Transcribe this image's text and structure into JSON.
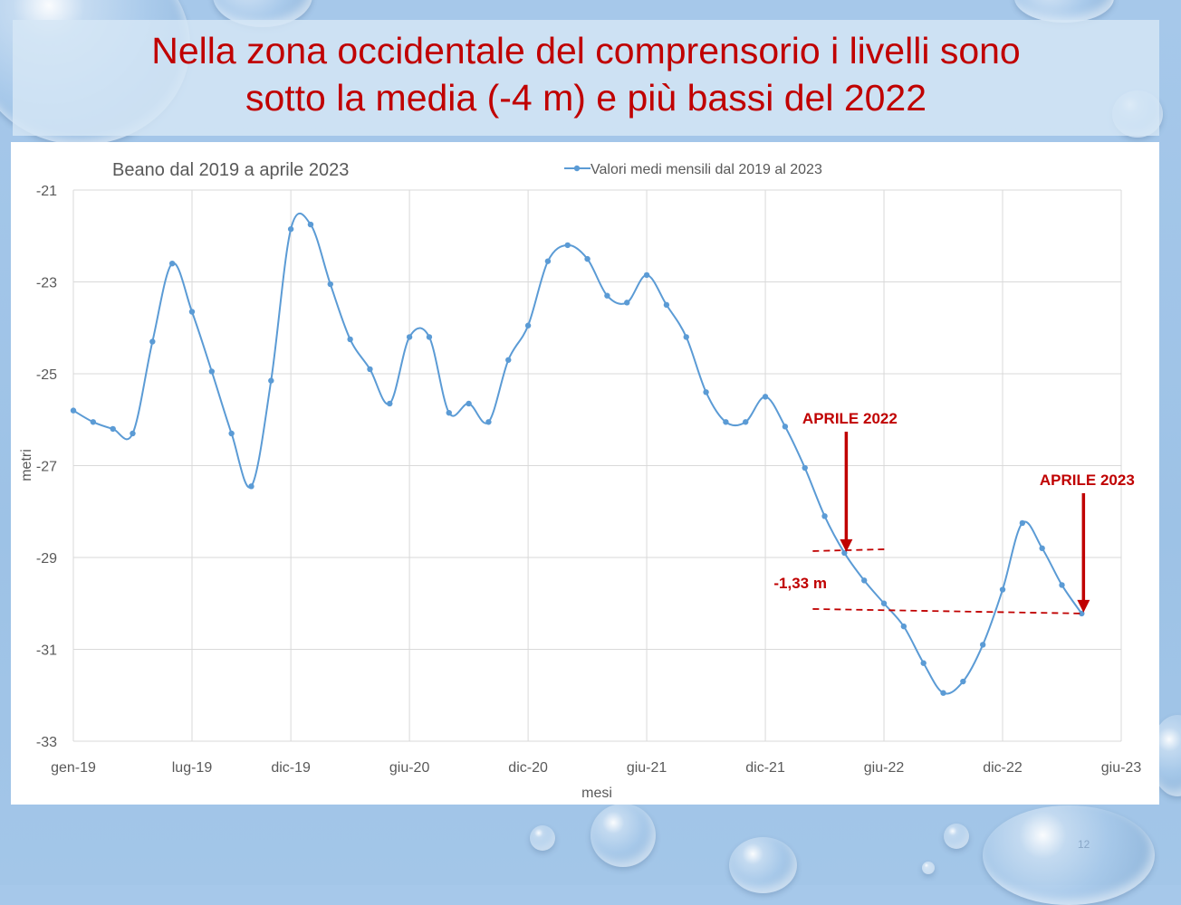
{
  "slide": {
    "title_line1": "Nella zona occidentale del comprensorio i livelli sono",
    "title_line2": "sotto la media (-4 m) e più bassi del 2022",
    "page_number": "12"
  },
  "chart_data": {
    "type": "line",
    "title": "Beano dal 2019 a aprile 2023",
    "xlabel": "mesi",
    "ylabel": "metri",
    "ylim": [
      -33,
      -21
    ],
    "yticks": [
      -21,
      -23,
      -25,
      -27,
      -29,
      -31,
      -33
    ],
    "xtick_labels": [
      "gen-19",
      "lug-19",
      "dic-19",
      "giu-20",
      "dic-20",
      "giu-21",
      "dic-21",
      "giu-22",
      "dic-22",
      "giu-23"
    ],
    "legend": {
      "position": "top",
      "label": "Valori medi mensili dal 2019 al 2023"
    },
    "grid": true,
    "series": [
      {
        "name": "Valori medi mensili dal 2019 al 2023",
        "color": "#5b9bd5",
        "x": [
          "2019-01",
          "2019-02",
          "2019-03",
          "2019-04",
          "2019-05",
          "2019-06",
          "2019-07",
          "2019-08",
          "2019-09",
          "2019-10",
          "2019-11",
          "2019-12",
          "2020-01",
          "2020-02",
          "2020-03",
          "2020-04",
          "2020-05",
          "2020-06",
          "2020-07",
          "2020-08",
          "2020-09",
          "2020-10",
          "2020-11",
          "2020-12",
          "2021-01",
          "2021-02",
          "2021-03",
          "2021-04",
          "2021-05",
          "2021-06",
          "2021-07",
          "2021-08",
          "2021-09",
          "2021-10",
          "2021-11",
          "2021-12",
          "2022-01",
          "2022-02",
          "2022-03",
          "2022-04",
          "2022-05",
          "2022-06",
          "2022-07",
          "2022-08",
          "2022-09",
          "2022-10",
          "2022-11",
          "2022-12",
          "2023-01",
          "2023-02",
          "2023-03",
          "2023-04"
        ],
        "values": [
          -25.8,
          -26.05,
          -26.2,
          -26.3,
          -24.3,
          -22.6,
          -23.65,
          -24.95,
          -26.3,
          -27.45,
          -25.15,
          -21.85,
          -21.75,
          -23.05,
          -24.25,
          -24.9,
          -25.65,
          -24.2,
          -24.2,
          -25.85,
          -25.65,
          -26.05,
          -24.7,
          -23.95,
          -22.55,
          -22.2,
          -22.5,
          -23.3,
          -23.45,
          -22.85,
          -23.5,
          -24.2,
          -25.4,
          -26.05,
          -26.05,
          -25.5,
          -26.15,
          -27.05,
          -28.1,
          -28.9,
          -29.5,
          -30.0,
          -30.5,
          -31.3,
          -31.95,
          -31.7,
          -30.9,
          -29.7,
          -28.25,
          -28.8,
          -29.6,
          -30.22
        ]
      }
    ],
    "annotations": [
      {
        "text": "APRILE 2022",
        "x": "2022-04",
        "y": -28.9,
        "color": "#c00000"
      },
      {
        "text": "APRILE 2023",
        "x": "2023-04",
        "y": -30.22,
        "color": "#c00000"
      },
      {
        "text": "-1,33 m",
        "color": "#c00000"
      }
    ]
  }
}
